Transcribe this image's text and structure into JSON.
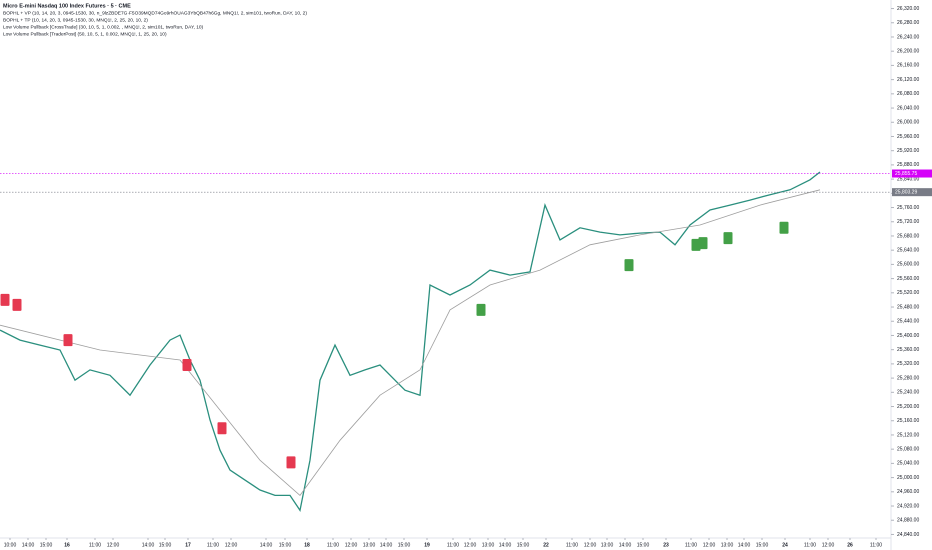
{
  "chart_data": {
    "type": "line",
    "title": "Micro E-mini Nasdaq 100 Index Futures · 5 · CME",
    "indicators": [
      "BOPHL + VP (10, 14, 20, 3, 0945-1530, 30, n_9lzZBDE7G·F5O39MQD74Go9rhOUAG3YbQB47h6Gg, MNQ1!, 2, sim101, twoRun, DAY, 10, 2)",
      "BOPHL + TP (10, 14, 20, 3, 0945-1530, 30, MNQ1!, 2, 25, 20, 10, 2)",
      "Low Volume Pullback [CrossTrade] (30, 10, 5, 1, 0.002, , MNQ1!, 2, sim101, twoRun, DAY, 10)",
      "Low Volume Pullback [TraderPost] (50, 10, 5, 1, 0.002, MNQ1!, 1, 25, 20, 10)"
    ],
    "xlim": [
      0,
      890
    ],
    "xticks": [
      {
        "value": 10,
        "label": "10:00"
      },
      {
        "value": 28,
        "label": "14:00"
      },
      {
        "value": 46,
        "label": "15:00"
      },
      {
        "value": 67,
        "label": "16"
      },
      {
        "value": 95,
        "label": "11:00"
      },
      {
        "value": 113,
        "label": "12:00"
      },
      {
        "value": 148,
        "label": "14:00"
      },
      {
        "value": 165,
        "label": "15:00"
      },
      {
        "value": 188,
        "label": "17"
      },
      {
        "value": 213,
        "label": "11:00"
      },
      {
        "value": 231,
        "label": "12:00"
      },
      {
        "value": 266,
        "label": "14:00"
      },
      {
        "value": 285,
        "label": "15:00"
      },
      {
        "value": 307,
        "label": "18"
      },
      {
        "value": 333,
        "label": "11:00"
      },
      {
        "value": 351,
        "label": "12:00"
      },
      {
        "value": 369,
        "label": "13:00"
      },
      {
        "value": 386,
        "label": "14:00"
      },
      {
        "value": 404,
        "label": "15:00"
      },
      {
        "value": 427,
        "label": "19"
      },
      {
        "value": 453,
        "label": "11:00"
      },
      {
        "value": 470,
        "label": "12:00"
      },
      {
        "value": 488,
        "label": "13:00"
      },
      {
        "value": 505,
        "label": "14:00"
      },
      {
        "value": 523,
        "label": "15:00"
      },
      {
        "value": 546,
        "label": "22"
      },
      {
        "value": 572,
        "label": "11:00"
      },
      {
        "value": 590,
        "label": "12:00"
      },
      {
        "value": 607,
        "label": "13:00"
      },
      {
        "value": 625,
        "label": "14:00"
      },
      {
        "value": 643,
        "label": "15:00"
      },
      {
        "value": 666,
        "label": "23"
      },
      {
        "value": 691,
        "label": "11:00"
      },
      {
        "value": 709,
        "label": "12:00"
      },
      {
        "value": 727,
        "label": "13:00"
      },
      {
        "value": 744,
        "label": "14:00"
      },
      {
        "value": 762,
        "label": "15:00"
      },
      {
        "value": 785,
        "label": "24"
      },
      {
        "value": 810,
        "label": "11:00"
      },
      {
        "value": 828,
        "label": "12:00"
      },
      {
        "value": 850,
        "label": "26"
      },
      {
        "value": 876,
        "label": "11:00"
      }
    ],
    "ylim": [
      24830,
      26330
    ],
    "yticks": [
      {
        "value": 24840,
        "label": "24,840.00"
      },
      {
        "value": 24880,
        "label": "24,880.00"
      },
      {
        "value": 24920,
        "label": "24,920.00"
      },
      {
        "value": 24960,
        "label": "24,960.00"
      },
      {
        "value": 25000,
        "label": "25,000.00"
      },
      {
        "value": 25040,
        "label": "25,040.00"
      },
      {
        "value": 25080,
        "label": "25,080.00"
      },
      {
        "value": 25120,
        "label": "25,120.00"
      },
      {
        "value": 25160,
        "label": "25,160.00"
      },
      {
        "value": 25200,
        "label": "25,200.00"
      },
      {
        "value": 25240,
        "label": "25,240.00"
      },
      {
        "value": 25280,
        "label": "25,280.00"
      },
      {
        "value": 25320,
        "label": "25,320.00"
      },
      {
        "value": 25360,
        "label": "25,360.00"
      },
      {
        "value": 25400,
        "label": "25,400.00"
      },
      {
        "value": 25440,
        "label": "25,440.00"
      },
      {
        "value": 25480,
        "label": "25,480.00"
      },
      {
        "value": 25520,
        "label": "25,520.00"
      },
      {
        "value": 25560,
        "label": "25,560.00"
      },
      {
        "value": 25600,
        "label": "25,600.00"
      },
      {
        "value": 25640,
        "label": "25,640.00"
      },
      {
        "value": 25680,
        "label": "25,680.00"
      },
      {
        "value": 25720,
        "label": "25,720.00"
      },
      {
        "value": 25760,
        "label": "25,760.00"
      },
      {
        "value": 25800,
        "label": "25,800.00"
      },
      {
        "value": 25840,
        "label": "25,840.00"
      },
      {
        "value": 25880,
        "label": "25,880.00"
      },
      {
        "value": 25920,
        "label": "25,920.00"
      },
      {
        "value": 25960,
        "label": "25,960.00"
      },
      {
        "value": 26000,
        "label": "26,000.00"
      },
      {
        "value": 26040,
        "label": "26,040.00"
      },
      {
        "value": 26080,
        "label": "26,080.00"
      },
      {
        "value": 26120,
        "label": "26,120.00"
      },
      {
        "value": 26160,
        "label": "26,160.00"
      },
      {
        "value": 26200,
        "label": "26,200.00"
      },
      {
        "value": 26240,
        "label": "26,240.00"
      },
      {
        "value": 26280,
        "label": "26,280.00"
      },
      {
        "value": 26320,
        "label": "26,320.00"
      }
    ],
    "series": [
      {
        "color": "#2a8f7e",
        "x": [
          0,
          20,
          40,
          60,
          75,
          90,
          110,
          130,
          150,
          170,
          180,
          190,
          200,
          210,
          220,
          230,
          245,
          260,
          275,
          290,
          300,
          310,
          320,
          335,
          350,
          365,
          380,
          395,
          405,
          420,
          430,
          450,
          470,
          490,
          510,
          530,
          545,
          560,
          580,
          600,
          620,
          640,
          660,
          675,
          690,
          710,
          730,
          750,
          770,
          790,
          810,
          820
        ],
        "values": [
          25415,
          25387,
          25373,
          25359,
          25274,
          25303,
          25288,
          25232,
          25317,
          25387,
          25401,
          25331,
          25274,
          25162,
          25077,
          25021,
          24993,
          24965,
          24950,
          24950,
          24908,
          25049,
          25274,
          25373,
          25288,
          25303,
          25317,
          25274,
          25246,
          25232,
          25542,
          25514,
          25542,
          25584,
          25570,
          25579,
          25767,
          25669,
          25703,
          25691,
          25683,
          25688,
          25691,
          25655,
          25711,
          25753,
          25767,
          25781,
          25796,
          25810,
          25838,
          25860
        ]
      },
      {
        "color": "#9e9e9e",
        "x": [
          0,
          100,
          180,
          220,
          260,
          300,
          340,
          380,
          420,
          450,
          490,
          540,
          590,
          640,
          700,
          760,
          820
        ],
        "values": [
          25429,
          25359,
          25331,
          25190,
          25049,
          24950,
          25105,
          25232,
          25303,
          25472,
          25542,
          25584,
          25655,
          25683,
          25711,
          25767,
          25810
        ]
      }
    ],
    "signals": [
      {
        "x": 5,
        "value": 25500,
        "color": "#e53950"
      },
      {
        "x": 17,
        "value": 25486,
        "color": "#e53950"
      },
      {
        "x": 68,
        "value": 25387,
        "color": "#e53950"
      },
      {
        "x": 187,
        "value": 25317,
        "color": "#e53950"
      },
      {
        "x": 222,
        "value": 25139,
        "color": "#e53950"
      },
      {
        "x": 291,
        "value": 25043,
        "color": "#e53950"
      },
      {
        "x": 481,
        "value": 25472,
        "color": "#43a047"
      },
      {
        "x": 629,
        "value": 25598,
        "color": "#43a047"
      },
      {
        "x": 696,
        "value": 25655,
        "color": "#43a047"
      },
      {
        "x": 703,
        "value": 25660,
        "color": "#43a047"
      },
      {
        "x": 728,
        "value": 25674,
        "color": "#43a047"
      },
      {
        "x": 784,
        "value": 25703,
        "color": "#43a047"
      }
    ],
    "price_tags": [
      {
        "value": 25855.75,
        "label": "25,855.75",
        "color": "#d500f9"
      },
      {
        "value": 25803.29,
        "label": "25,803.29",
        "color": "#787b86"
      }
    ]
  }
}
